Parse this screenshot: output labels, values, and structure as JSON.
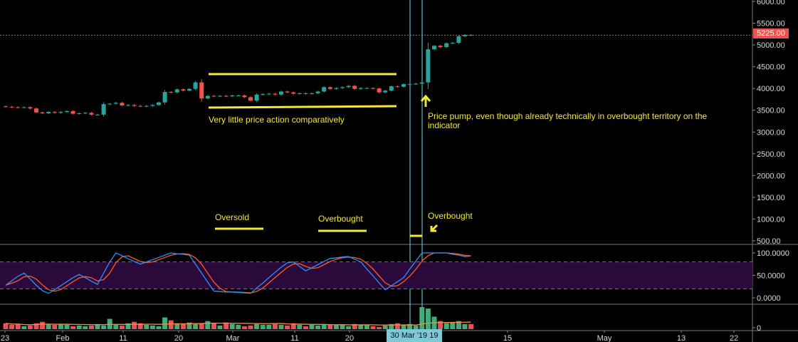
{
  "colors": {
    "up": "#26a69a",
    "down": "#ef5350",
    "annotation": "#f2e93a",
    "stoch_k": "#2f8fff",
    "stoch_d": "#ff5a1f",
    "rsi_band": "#2a0a3a",
    "vol_up": "#3fae7a",
    "vol_down": "#e8505b",
    "vol_ma": "#ff8c3a",
    "crosshair": "#7fd6e8",
    "last_price_line": "#ef5350"
  },
  "annotations": {
    "consolidation": "Very little price action comparatively",
    "pump": "Price pump, even though already technically in overbought territory on the indicator",
    "oversold": "Oversold",
    "overbought_1": "Overbought",
    "overbought_2": "Overbought"
  },
  "crosshair_label": "30 Mar '19  19",
  "last_price_label": "5225.00",
  "chart_data": [
    {
      "type": "candlestick",
      "title": "",
      "y_ticks": [
        "6000.00",
        "5500.00",
        "5000.00",
        "4500.00",
        "4000.00",
        "3500.00",
        "3000.00",
        "2500.00",
        "2000.00",
        "1500.00",
        "1000.00",
        "500.00"
      ],
      "ylim": [
        500,
        6000
      ],
      "x_ticks": [
        "23",
        "Feb",
        "11",
        "20",
        "Mar",
        "11",
        "20",
        "15",
        "May",
        "13",
        "22"
      ],
      "first_date": "2019-01-23",
      "last_price": 5225,
      "close": [
        3580,
        3570,
        3565,
        3570,
        3540,
        3450,
        3430,
        3460,
        3440,
        3460,
        3480,
        3420,
        3430,
        3440,
        3400,
        3400,
        3640,
        3650,
        3670,
        3610,
        3620,
        3600,
        3590,
        3600,
        3620,
        3680,
        3920,
        3910,
        3980,
        3950,
        3990,
        4140,
        3770,
        3830,
        3820,
        3830,
        3820,
        3840,
        3840,
        3800,
        3720,
        3860,
        3870,
        3880,
        3860,
        3930,
        3910,
        3880,
        3890,
        3880,
        3890,
        3930,
        4030,
        3990,
        4010,
        4030,
        4060,
        3990,
        4010,
        4010,
        4000,
        3910,
        3950,
        4050,
        4040,
        4100,
        4100,
        4110,
        4140,
        4900,
        4980,
        4950,
        5040,
        5050,
        5200,
        5230,
        5225
      ]
    },
    {
      "type": "line",
      "title": "",
      "y_ticks": [
        "100.0000",
        "50.0000",
        "0.0000"
      ],
      "ylim": [
        0,
        100
      ],
      "band": [
        20,
        80
      ],
      "series": [
        {
          "values": [
            28,
            38,
            48,
            55,
            42,
            28,
            16,
            10,
            18,
            27,
            36,
            45,
            52,
            45,
            37,
            30,
            55,
            80,
            100,
            94,
            87,
            81,
            75,
            80,
            85,
            90,
            95,
            100,
            98,
            97,
            95,
            75,
            55,
            35,
            15,
            14,
            13,
            13,
            12,
            11,
            10,
            22,
            33,
            45,
            57,
            68,
            78,
            80,
            70,
            60,
            67,
            74,
            81,
            88,
            89,
            91,
            92,
            86,
            80,
            64,
            49,
            33,
            18,
            27,
            36,
            45,
            64,
            82,
            100,
            100,
            100,
            100,
            100,
            97,
            95,
            92,
            93
          ]
        }
      ]
    },
    {
      "type": "bar",
      "title": "",
      "y_ticks": [
        "0"
      ],
      "values": [
        8,
        6,
        7,
        4,
        5,
        8,
        10,
        7,
        6,
        7,
        6,
        4,
        5,
        4,
        5,
        7,
        5,
        14,
        6,
        5,
        8,
        10,
        8,
        6,
        5,
        4,
        16,
        12,
        8,
        7,
        9,
        7,
        8,
        11,
        8,
        5,
        9,
        7,
        6,
        4,
        5,
        7,
        6,
        6,
        7,
        6,
        5,
        8,
        6,
        4,
        6,
        5,
        7,
        6,
        6,
        6,
        4,
        7,
        6,
        6,
        4,
        3,
        5,
        7,
        8,
        6,
        7,
        5,
        30,
        28,
        17,
        11,
        8,
        9,
        11,
        7,
        7
      ]
    }
  ]
}
